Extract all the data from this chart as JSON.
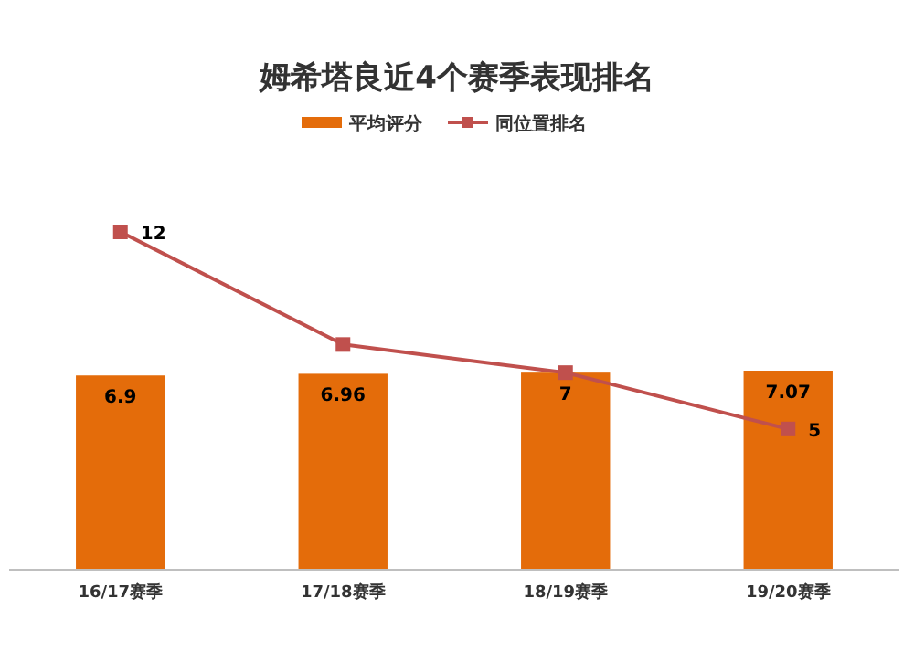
{
  "chart_data": {
    "type": "bar",
    "title": "姆希塔良近4个赛季表现排名",
    "categories": [
      "16/17赛季",
      "17/18赛季",
      "18/19赛季",
      "19/20赛季"
    ],
    "series": [
      {
        "name": "平均评分",
        "color": "#e46c0a",
        "values": [
          6.9,
          6.96,
          7,
          7.07
        ],
        "value_labels": [
          "6.9",
          "6.96",
          "7",
          "7.07"
        ]
      },
      {
        "name": "同位置排名",
        "type": "line",
        "color": "#c0504d",
        "values": [
          12,
          8,
          7,
          5
        ],
        "value_labels": [
          "12",
          null,
          null,
          "5"
        ],
        "marker": "square"
      }
    ],
    "legend": "top",
    "grid": false
  }
}
